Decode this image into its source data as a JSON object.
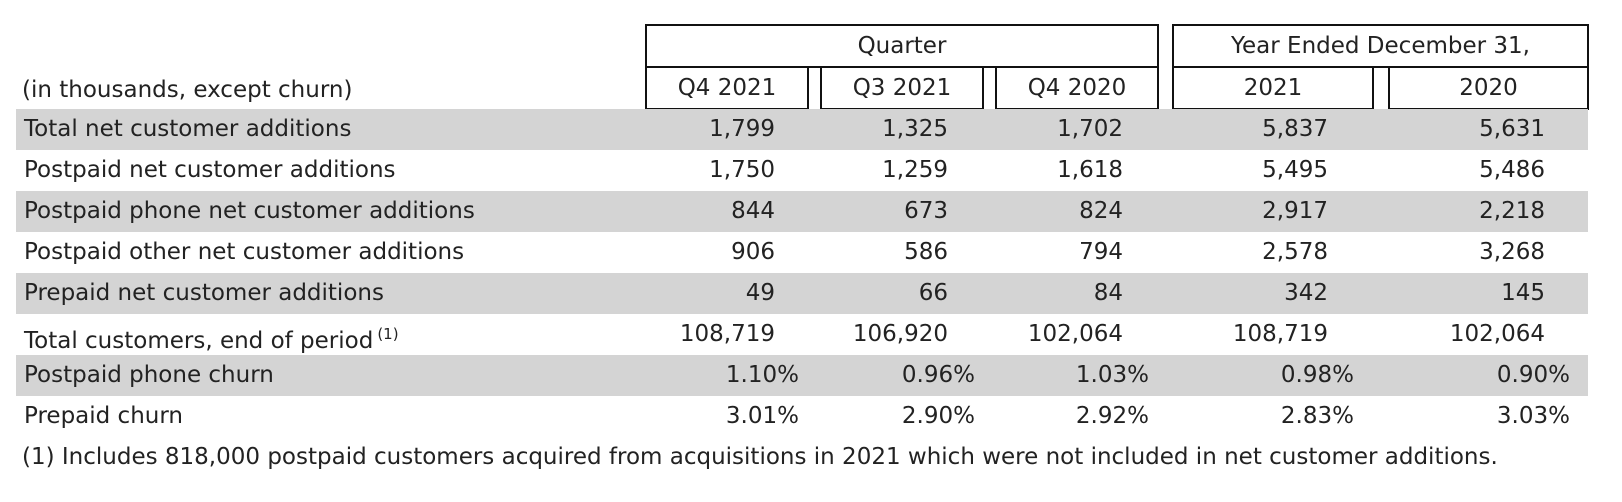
{
  "table": {
    "units_label": "(in thousands, except churn)",
    "group_headers": [
      "Quarter",
      "Year Ended December 31,"
    ],
    "columns": [
      "Q4 2021",
      "Q3 2021",
      "Q4 2020",
      "2021",
      "2020"
    ],
    "rows": [
      {
        "label": "Total net customer additions",
        "values": [
          "1,799",
          "1,325",
          "1,702",
          "5,837",
          "5,631"
        ]
      },
      {
        "label": "Postpaid net customer additions",
        "values": [
          "1,750",
          "1,259",
          "1,618",
          "5,495",
          "5,486"
        ]
      },
      {
        "label": "Postpaid phone net customer additions",
        "values": [
          "844",
          "673",
          "824",
          "2,917",
          "2,218"
        ]
      },
      {
        "label": "Postpaid other net customer additions",
        "values": [
          "906",
          "586",
          "794",
          "2,578",
          "3,268"
        ]
      },
      {
        "label": "Prepaid net customer additions",
        "values": [
          "49",
          "66",
          "84",
          "342",
          "145"
        ]
      },
      {
        "label": "Total customers, end of period",
        "marker": "(1)",
        "values": [
          "108,719",
          "106,920",
          "102,064",
          "108,719",
          "102,064"
        ]
      },
      {
        "label": "Postpaid phone churn",
        "values": [
          "1.10%",
          "0.96%",
          "1.03%",
          "0.98%",
          "0.90%"
        ]
      },
      {
        "label": "Prepaid churn",
        "values": [
          "3.01%",
          "2.90%",
          "2.92%",
          "2.83%",
          "3.03%"
        ]
      }
    ],
    "footnote": "(1) Includes 818,000 postpaid customers acquired from acquisitions in 2021 which were not included in net customer additions."
  }
}
